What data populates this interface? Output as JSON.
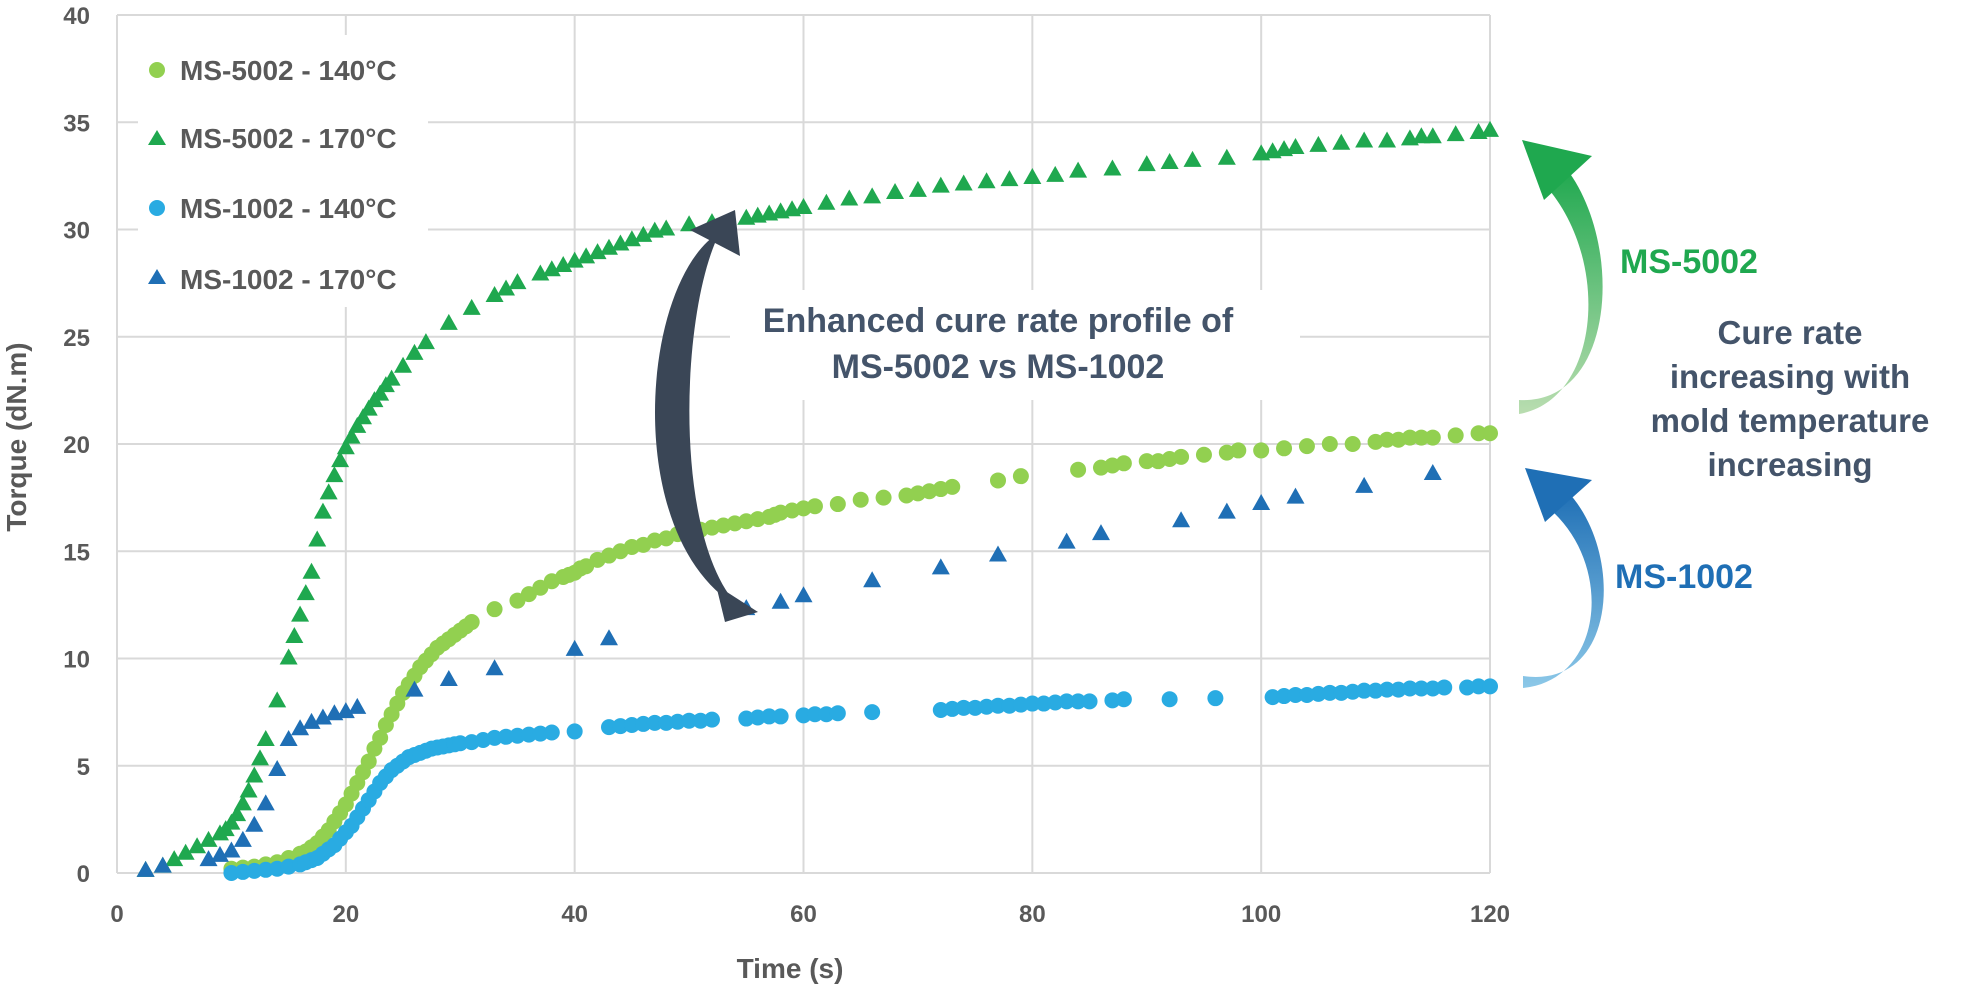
{
  "chart_data": {
    "type": "scatter",
    "xlabel": "Time (s)",
    "ylabel": "Torque (dN.m)",
    "xlim": [
      0,
      120
    ],
    "ylim": [
      0,
      40
    ],
    "x_ticks": [
      0,
      20,
      40,
      60,
      80,
      100,
      120
    ],
    "y_ticks": [
      0,
      5,
      10,
      15,
      20,
      25,
      30,
      35,
      40
    ],
    "grid": true,
    "legend_position": "top-left",
    "series": [
      {
        "name": "MS-5002 - 140°C",
        "marker": "circle",
        "color": "#92D050",
        "x": [
          10,
          11,
          12,
          13,
          14,
          15,
          16,
          16.5,
          17,
          17.5,
          18,
          18.5,
          19,
          19.5,
          20,
          20.5,
          21,
          21.5,
          22,
          22.5,
          23,
          23.5,
          24,
          24.5,
          25,
          25.5,
          26,
          26.5,
          27,
          27.5,
          28,
          28.5,
          29,
          29.5,
          30,
          30.5,
          31,
          33,
          35,
          36,
          37,
          38,
          39,
          39.5,
          40,
          40.5,
          41,
          42,
          43,
          44,
          45,
          46,
          47,
          48,
          49,
          50,
          51,
          52,
          53,
          54,
          55,
          56,
          57,
          57.5,
          58,
          59,
          60,
          61,
          63,
          65,
          67,
          69,
          70,
          71,
          72,
          73,
          77,
          79,
          84,
          86,
          87,
          88,
          90,
          91,
          92,
          93,
          95,
          97,
          98,
          100,
          102,
          104,
          106,
          108,
          110,
          111,
          112,
          113,
          114,
          115,
          117,
          119,
          120
        ],
        "y": [
          0.2,
          0.25,
          0.3,
          0.4,
          0.5,
          0.7,
          0.9,
          1.0,
          1.2,
          1.4,
          1.7,
          2.0,
          2.4,
          2.8,
          3.2,
          3.7,
          4.2,
          4.7,
          5.2,
          5.8,
          6.3,
          6.9,
          7.4,
          7.9,
          8.4,
          8.8,
          9.2,
          9.6,
          9.9,
          10.2,
          10.5,
          10.7,
          10.9,
          11.1,
          11.3,
          11.5,
          11.7,
          12.3,
          12.7,
          13.0,
          13.3,
          13.6,
          13.8,
          13.9,
          14.0,
          14.2,
          14.3,
          14.6,
          14.8,
          15.0,
          15.2,
          15.3,
          15.5,
          15.6,
          15.8,
          15.9,
          16.0,
          16.1,
          16.2,
          16.3,
          16.4,
          16.5,
          16.6,
          16.7,
          16.8,
          16.9,
          17.0,
          17.1,
          17.2,
          17.4,
          17.5,
          17.6,
          17.7,
          17.8,
          17.9,
          18.0,
          18.3,
          18.5,
          18.8,
          18.9,
          19.0,
          19.1,
          19.2,
          19.2,
          19.3,
          19.4,
          19.5,
          19.6,
          19.7,
          19.7,
          19.8,
          19.9,
          20.0,
          20.0,
          20.1,
          20.2,
          20.2,
          20.3,
          20.3,
          20.3,
          20.4,
          20.5,
          20.5
        ]
      },
      {
        "name": "MS-5002 - 170°C",
        "marker": "triangle",
        "color": "#1FA84F",
        "x": [
          2.5,
          4,
          5,
          6,
          7,
          8,
          9,
          9.5,
          10,
          10.5,
          11,
          11.5,
          12,
          12.5,
          13,
          14,
          15,
          15.5,
          16,
          16.5,
          17,
          17.5,
          18,
          18.5,
          19,
          19.5,
          20,
          20.5,
          21,
          21.5,
          22,
          22.5,
          23,
          23.5,
          24,
          25,
          26,
          27,
          29,
          31,
          33,
          34,
          35,
          37,
          38,
          39,
          40,
          41,
          42,
          43,
          44,
          45,
          46,
          47,
          48,
          50,
          52,
          55,
          56,
          57,
          58,
          59,
          60,
          62,
          64,
          66,
          68,
          70,
          72,
          74,
          76,
          78,
          80,
          82,
          84,
          87,
          90,
          92,
          94,
          97,
          100,
          101,
          102,
          103,
          105,
          107,
          109,
          111,
          113,
          114,
          115,
          117,
          119,
          120
        ],
        "y": [
          0.1,
          0.3,
          0.6,
          0.9,
          1.2,
          1.5,
          1.8,
          2.0,
          2.3,
          2.7,
          3.2,
          3.8,
          4.5,
          5.3,
          6.2,
          8.0,
          10.0,
          11.0,
          12.0,
          13.0,
          14.0,
          15.5,
          16.8,
          17.7,
          18.5,
          19.2,
          19.8,
          20.3,
          20.8,
          21.2,
          21.6,
          22.0,
          22.3,
          22.7,
          23.0,
          23.6,
          24.2,
          24.7,
          25.6,
          26.3,
          26.9,
          27.2,
          27.5,
          27.9,
          28.1,
          28.3,
          28.5,
          28.7,
          28.9,
          29.1,
          29.3,
          29.5,
          29.7,
          29.9,
          30.0,
          30.2,
          30.3,
          30.5,
          30.6,
          30.7,
          30.8,
          30.9,
          31.0,
          31.2,
          31.4,
          31.5,
          31.7,
          31.8,
          32.0,
          32.1,
          32.2,
          32.3,
          32.4,
          32.5,
          32.7,
          32.8,
          33.0,
          33.1,
          33.2,
          33.3,
          33.5,
          33.6,
          33.7,
          33.8,
          33.9,
          34.0,
          34.1,
          34.1,
          34.2,
          34.3,
          34.3,
          34.4,
          34.5,
          34.6
        ]
      },
      {
        "name": "MS-1002 - 140°C",
        "marker": "circle",
        "color": "#29ABE2",
        "x": [
          10,
          11,
          12,
          13,
          14,
          15,
          16,
          16.5,
          17,
          17.5,
          18,
          18.5,
          19,
          19.5,
          20,
          20.5,
          21,
          21.5,
          22,
          22.5,
          23,
          23.5,
          24,
          24.5,
          25,
          25.5,
          26,
          26.5,
          27,
          27.5,
          28,
          28.5,
          29,
          29.5,
          30,
          31,
          32,
          33,
          34,
          35,
          36,
          37,
          38,
          40,
          43,
          44,
          45,
          46,
          47,
          48,
          49,
          50,
          51,
          52,
          55,
          56,
          57,
          58,
          60,
          61,
          62,
          63,
          66,
          72,
          73,
          74,
          75,
          76,
          77,
          78,
          79,
          80,
          81,
          82,
          83,
          84,
          85,
          87,
          88,
          92,
          96,
          101,
          102,
          103,
          104,
          105,
          106,
          107,
          108,
          109,
          110,
          111,
          112,
          113,
          114,
          115,
          116,
          118,
          119,
          120
        ],
        "y": [
          0.0,
          0.05,
          0.1,
          0.15,
          0.2,
          0.3,
          0.4,
          0.5,
          0.6,
          0.7,
          0.9,
          1.1,
          1.3,
          1.6,
          1.9,
          2.2,
          2.6,
          3.0,
          3.4,
          3.8,
          4.2,
          4.5,
          4.8,
          5.0,
          5.2,
          5.4,
          5.5,
          5.6,
          5.7,
          5.8,
          5.85,
          5.9,
          5.95,
          6.0,
          6.05,
          6.1,
          6.2,
          6.3,
          6.35,
          6.4,
          6.45,
          6.5,
          6.55,
          6.6,
          6.8,
          6.85,
          6.9,
          6.95,
          7.0,
          7.0,
          7.05,
          7.1,
          7.1,
          7.15,
          7.2,
          7.25,
          7.3,
          7.3,
          7.35,
          7.4,
          7.4,
          7.45,
          7.5,
          7.6,
          7.65,
          7.7,
          7.7,
          7.75,
          7.8,
          7.8,
          7.85,
          7.9,
          7.9,
          7.95,
          8.0,
          8.0,
          8.0,
          8.05,
          8.1,
          8.1,
          8.15,
          8.2,
          8.25,
          8.3,
          8.3,
          8.35,
          8.4,
          8.4,
          8.45,
          8.5,
          8.5,
          8.55,
          8.55,
          8.6,
          8.6,
          8.6,
          8.65,
          8.65,
          8.7,
          8.7
        ]
      },
      {
        "name": "MS-1002 - 170°C",
        "marker": "triangle",
        "color": "#1F6FB5",
        "x": [
          2.5,
          4,
          8,
          9,
          10,
          11,
          12,
          13,
          14,
          15,
          16,
          17,
          18,
          19,
          20,
          21,
          26,
          29,
          33,
          40,
          43,
          55,
          58,
          60,
          66,
          72,
          77,
          83,
          86,
          93,
          97,
          100,
          103,
          109,
          115
        ],
        "y": [
          0.1,
          0.3,
          0.6,
          0.8,
          1.0,
          1.5,
          2.2,
          3.2,
          4.8,
          6.2,
          6.7,
          7.0,
          7.2,
          7.4,
          7.5,
          7.7,
          8.5,
          9.0,
          9.5,
          10.4,
          10.9,
          12.3,
          12.6,
          12.9,
          13.6,
          14.2,
          14.8,
          15.4,
          15.8,
          16.4,
          16.8,
          17.2,
          17.5,
          18.0,
          18.6
        ]
      }
    ],
    "annotations": {
      "center_text": [
        "Enhanced cure rate profile of",
        "MS-5002 vs MS-1002"
      ],
      "ms5002_label": "MS-5002",
      "ms1002_label": "MS-1002",
      "side_text": [
        "Cure rate",
        "increasing with",
        "mold temperature",
        "increasing"
      ]
    }
  },
  "colors": {
    "grid": "#d9d9d9",
    "text": "#595959",
    "annotation_dark": "#44546A",
    "ms5002": "#1FA84F",
    "ms5002_light": "#92D050",
    "ms1002": "#1F6FB5",
    "ms1002_light": "#29ABE2"
  }
}
